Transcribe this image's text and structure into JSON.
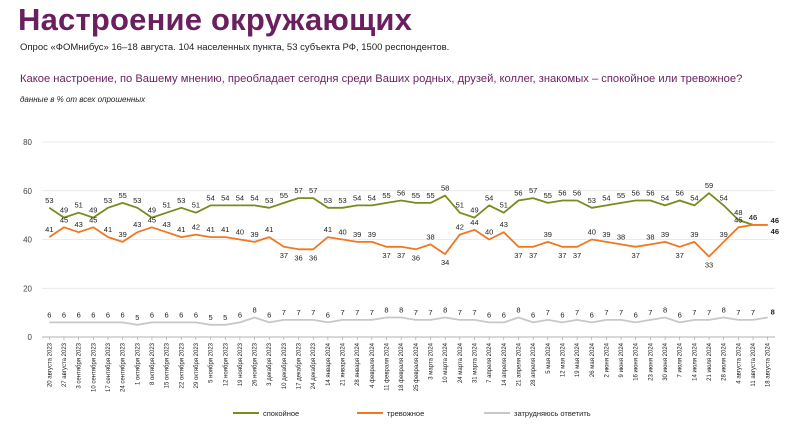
{
  "header": {
    "title": "Настроение окружающих",
    "subtitle": "Опрос «ФОМнибус» 16–18 августа. 104 населенных пункта, 53 субъекта РФ, 1500 респондентов.",
    "question": "Какое настроение, по Вашему мнению, преобладает сегодня среди Ваших родных, друзей, коллег, знакомых – спокойное или тревожное?",
    "note": "данные в % от всех опрошенных"
  },
  "colors": {
    "calm": "#7a8a1f",
    "anxious": "#f07820",
    "unsure": "#c8c8c8",
    "title": "#6a1f5e",
    "grid": "#e4e4e4"
  },
  "chart_data": {
    "type": "line",
    "ylim": [
      0,
      80
    ],
    "yticks": [
      0,
      20,
      40,
      60,
      80
    ],
    "grid": true,
    "legend": "bottom",
    "categories": [
      "20 августа 2023",
      "27 августа 2023",
      "3 сентября 2023",
      "10 сентября 2023",
      "17 сентября 2023",
      "24 сентября 2023",
      "1 октября 2023",
      "8 октября 2023",
      "15 октября 2023",
      "22 октября 2023",
      "29 октября 2023",
      "5 ноября 2023",
      "12 ноября 2023",
      "19 ноября 2023",
      "26 ноября 2023",
      "3 декабря 2023",
      "10 декабря 2023",
      "17 декабря 2023",
      "24 декабря 2023",
      "14 января 2024",
      "21 января 2024",
      "28 января 2024",
      "4 февраля 2024",
      "11 февраля 2024",
      "18 февраля 2024",
      "25 февраля 2024",
      "3 марта 2024",
      "10 марта 2024",
      "24 марта 2024",
      "31 марта 2024",
      "7 апреля 2024",
      "14 апреля 2024",
      "21 апреля 2024",
      "28 апреля 2024",
      "5 мая 2024",
      "12 мая 2024",
      "19 мая 2024",
      "26 мая 2024",
      "2 июня 2024",
      "9 июня 2024",
      "16 июня 2024",
      "23 июня 2024",
      "30 июня 2024",
      "7 июля 2024",
      "14 июля 2024",
      "21 июля 2024",
      "28 июля 2024",
      "4 августа 2024",
      "11 августа 2024",
      "18 августа 2024"
    ],
    "series": [
      {
        "name": "спокойное",
        "color": "#7a8a1f",
        "values": [
          53,
          49,
          51,
          49,
          53,
          55,
          53,
          49,
          51,
          53,
          51,
          54,
          54,
          54,
          54,
          53,
          55,
          57,
          57,
          53,
          53,
          54,
          54,
          55,
          56,
          55,
          55,
          58,
          51,
          49,
          54,
          51,
          56,
          57,
          55,
          56,
          56,
          53,
          54,
          55,
          56,
          56,
          54,
          56,
          54,
          59,
          54,
          48,
          46,
          46
        ],
        "label_pos": "above"
      },
      {
        "name": "тревожное",
        "color": "#f07820",
        "values": [
          41,
          45,
          43,
          45,
          41,
          39,
          43,
          45,
          43,
          41,
          42,
          41,
          41,
          40,
          39,
          41,
          37,
          36,
          36,
          41,
          40,
          39,
          39,
          37,
          37,
          36,
          38,
          34,
          42,
          44,
          40,
          43,
          37,
          37,
          39,
          37,
          37,
          40,
          39,
          38,
          37,
          38,
          39,
          37,
          39,
          33,
          39,
          45,
          46,
          46
        ],
        "label_pos": "mixed"
      },
      {
        "name": "затрудняюсь ответить",
        "color": "#c8c8c8",
        "values": [
          6,
          6,
          6,
          6,
          6,
          6,
          5,
          6,
          6,
          6,
          6,
          5,
          5,
          6,
          8,
          6,
          7,
          7,
          7,
          6,
          7,
          7,
          7,
          8,
          8,
          7,
          7,
          8,
          7,
          7,
          6,
          6,
          8,
          6,
          7,
          6,
          7,
          6,
          7,
          7,
          6,
          7,
          8,
          6,
          7,
          7,
          8,
          7,
          7,
          8
        ],
        "label_pos": "above"
      }
    ]
  }
}
